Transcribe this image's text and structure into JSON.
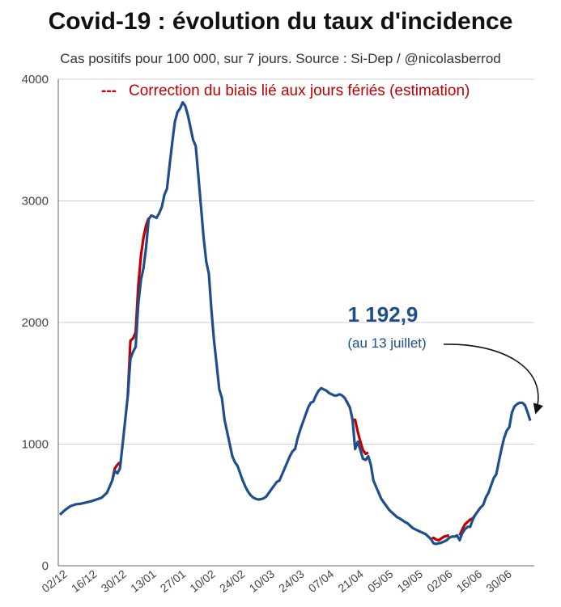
{
  "chart_data": {
    "type": "line",
    "title": "Covid-19 : évolution du taux d'incidence",
    "subtitle": "Cas positifs pour 100 000, sur 7 jours. Source : Si-Dep  / @nicolasberrod",
    "ylim": [
      0,
      4000
    ],
    "y_ticks": [
      "0",
      "1000",
      "2000",
      "3000",
      "4000"
    ],
    "x_ticks": [
      "02/12",
      "16/12",
      "30/12",
      "13/01",
      "27/01",
      "10/02",
      "24/02",
      "10/03",
      "24/03",
      "07/04",
      "21/04",
      "05/05",
      "19/05",
      "02/06",
      "16/06",
      "30/06"
    ],
    "legend": {
      "marker": "---",
      "label": "Correction du biais lié aux jours fériés (estimation)",
      "color": "#c00000"
    },
    "annotation": {
      "value": "1 192,9",
      "sub": "(au 13 juillet)"
    },
    "series": [
      {
        "name": "Taux d'incidence",
        "color": "#1f4e8c",
        "points": [
          [
            0,
            420
          ],
          [
            2,
            460
          ],
          [
            4,
            490
          ],
          [
            6,
            505
          ],
          [
            8,
            510
          ],
          [
            10,
            520
          ],
          [
            12,
            530
          ],
          [
            14,
            545
          ],
          [
            16,
            560
          ],
          [
            18,
            600
          ],
          [
            20,
            700
          ],
          [
            21,
            780
          ],
          [
            22,
            760
          ],
          [
            23,
            800
          ],
          [
            24,
            1000
          ],
          [
            25,
            1200
          ],
          [
            26,
            1400
          ],
          [
            27,
            1700
          ],
          [
            28,
            1760
          ],
          [
            29,
            1800
          ],
          [
            30,
            2150
          ],
          [
            31,
            2350
          ],
          [
            32,
            2450
          ],
          [
            33,
            2620
          ],
          [
            34,
            2850
          ],
          [
            35,
            2880
          ],
          [
            36,
            2870
          ],
          [
            37,
            2860
          ],
          [
            38,
            2900
          ],
          [
            39,
            2950
          ],
          [
            40,
            3050
          ],
          [
            41,
            3100
          ],
          [
            42,
            3300
          ],
          [
            43,
            3480
          ],
          [
            44,
            3650
          ],
          [
            45,
            3730
          ],
          [
            46,
            3760
          ],
          [
            47,
            3810
          ],
          [
            48,
            3780
          ],
          [
            49,
            3700
          ],
          [
            50,
            3600
          ],
          [
            51,
            3500
          ],
          [
            52,
            3450
          ],
          [
            53,
            3200
          ],
          [
            54,
            2950
          ],
          [
            55,
            2700
          ],
          [
            56,
            2500
          ],
          [
            57,
            2400
          ],
          [
            58,
            2100
          ],
          [
            59,
            1850
          ],
          [
            60,
            1650
          ],
          [
            61,
            1450
          ],
          [
            62,
            1380
          ],
          [
            63,
            1200
          ],
          [
            64,
            1100
          ],
          [
            65,
            1000
          ],
          [
            66,
            900
          ],
          [
            67,
            850
          ],
          [
            68,
            820
          ],
          [
            69,
            760
          ],
          [
            70,
            700
          ],
          [
            71,
            650
          ],
          [
            72,
            610
          ],
          [
            73,
            580
          ],
          [
            74,
            560
          ],
          [
            75,
            550
          ],
          [
            76,
            545
          ],
          [
            77,
            548
          ],
          [
            78,
            555
          ],
          [
            79,
            570
          ],
          [
            80,
            600
          ],
          [
            81,
            630
          ],
          [
            82,
            660
          ],
          [
            83,
            690
          ],
          [
            84,
            700
          ],
          [
            85,
            750
          ],
          [
            86,
            800
          ],
          [
            87,
            850
          ],
          [
            88,
            900
          ],
          [
            89,
            940
          ],
          [
            90,
            960
          ],
          [
            91,
            1050
          ],
          [
            92,
            1120
          ],
          [
            93,
            1180
          ],
          [
            94,
            1240
          ],
          [
            95,
            1300
          ],
          [
            96,
            1340
          ],
          [
            97,
            1350
          ],
          [
            98,
            1400
          ],
          [
            99,
            1440
          ],
          [
            100,
            1460
          ],
          [
            101,
            1450
          ],
          [
            102,
            1440
          ],
          [
            103,
            1420
          ],
          [
            104,
            1410
          ],
          [
            105,
            1400
          ],
          [
            106,
            1400
          ],
          [
            107,
            1410
          ],
          [
            108,
            1400
          ],
          [
            109,
            1380
          ],
          [
            110,
            1340
          ],
          [
            111,
            1300
          ],
          [
            112,
            1200
          ],
          [
            113,
            960
          ],
          [
            114,
            1020
          ],
          [
            115,
            950
          ],
          [
            116,
            880
          ],
          [
            117,
            870
          ],
          [
            118,
            900
          ],
          [
            119,
            830
          ],
          [
            120,
            700
          ],
          [
            121,
            650
          ],
          [
            122,
            600
          ],
          [
            123,
            550
          ],
          [
            124,
            520
          ],
          [
            125,
            490
          ],
          [
            126,
            460
          ],
          [
            127,
            440
          ],
          [
            128,
            420
          ],
          [
            129,
            400
          ],
          [
            130,
            390
          ],
          [
            131,
            375
          ],
          [
            132,
            360
          ],
          [
            133,
            350
          ],
          [
            134,
            330
          ],
          [
            135,
            310
          ],
          [
            136,
            300
          ],
          [
            137,
            290
          ],
          [
            138,
            280
          ],
          [
            139,
            270
          ],
          [
            140,
            260
          ],
          [
            141,
            240
          ],
          [
            142,
            220
          ],
          [
            143,
            185
          ],
          [
            144,
            180
          ],
          [
            145,
            185
          ],
          [
            146,
            190
          ],
          [
            147,
            200
          ],
          [
            148,
            210
          ],
          [
            149,
            230
          ],
          [
            150,
            240
          ],
          [
            151,
            240
          ],
          [
            152,
            250
          ],
          [
            153,
            210
          ],
          [
            154,
            270
          ],
          [
            155,
            300
          ],
          [
            156,
            320
          ],
          [
            157,
            320
          ],
          [
            158,
            380
          ],
          [
            159,
            420
          ],
          [
            160,
            450
          ],
          [
            161,
            480
          ],
          [
            162,
            500
          ],
          [
            163,
            560
          ],
          [
            164,
            600
          ],
          [
            165,
            660
          ],
          [
            166,
            720
          ],
          [
            167,
            750
          ],
          [
            168,
            860
          ],
          [
            169,
            960
          ],
          [
            170,
            1050
          ],
          [
            171,
            1110
          ],
          [
            172,
            1140
          ],
          [
            173,
            1260
          ],
          [
            174,
            1310
          ],
          [
            175,
            1330
          ],
          [
            176,
            1340
          ],
          [
            177,
            1340
          ],
          [
            178,
            1320
          ],
          [
            179,
            1260
          ],
          [
            180,
            1193
          ]
        ]
      },
      {
        "name": "Correction du biais lié aux jours fériés (estimation)",
        "color": "#c00000",
        "segments": [
          [
            [
              20,
              700
            ],
            [
              21,
              800
            ],
            [
              22,
              830
            ],
            [
              23,
              850
            ]
          ],
          [
            [
              26,
              1400
            ],
            [
              27,
              1850
            ],
            [
              28,
              1870
            ],
            [
              29,
              1920
            ],
            [
              30,
              2300
            ],
            [
              31,
              2550
            ],
            [
              32,
              2700
            ],
            [
              33,
              2800
            ],
            [
              34,
              2860
            ]
          ],
          [
            [
              112,
              1200
            ],
            [
              113,
              1200
            ],
            [
              114,
              1100
            ],
            [
              115,
              1020
            ],
            [
              116,
              950
            ],
            [
              117,
              920
            ],
            [
              118,
              930
            ]
          ],
          [
            [
              142,
              220
            ],
            [
              143,
              230
            ],
            [
              144,
              215
            ],
            [
              145,
              210
            ],
            [
              146,
              225
            ],
            [
              147,
              240
            ],
            [
              148,
              245
            ],
            [
              149,
              250
            ]
          ],
          [
            [
              153,
              250
            ],
            [
              154,
              300
            ],
            [
              155,
              340
            ],
            [
              156,
              360
            ],
            [
              157,
              380
            ],
            [
              158,
              390
            ],
            [
              159,
              420
            ]
          ]
        ]
      }
    ]
  }
}
